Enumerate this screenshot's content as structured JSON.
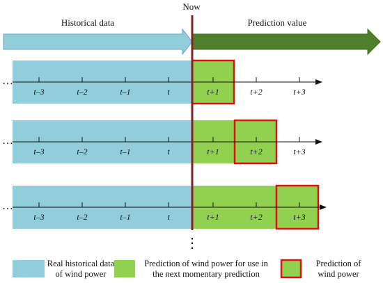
{
  "now_label": "Now",
  "historical_label": "Historical data",
  "prediction_label": "Prediction value",
  "ellipsis": "…",
  "vertical_ellipsis": "⋮",
  "tick_labels": {
    "t_minus_3": "t–3",
    "t_minus_2": "t–2",
    "t_minus_1": "t–1",
    "t": "t",
    "t_plus_1": "t+1",
    "t_plus_2": "t+2",
    "t_plus_3": "t+3"
  },
  "rows": [
    {
      "green_span": 1,
      "red_box": "t+1"
    },
    {
      "green_span": 2,
      "red_box": "t+2"
    },
    {
      "green_span": 3,
      "red_box": "t+3"
    }
  ],
  "legend": {
    "historical": {
      "line1": "Real historical data",
      "line2": "of wind power"
    },
    "prediction_use": {
      "line1": "Prediction of wind power for use in",
      "line2": "the next momentary prediction"
    },
    "prediction": {
      "line1": "Prediction of",
      "line2": "wind power"
    }
  },
  "colors": {
    "historical": "#92cddc",
    "prediction": "#92d050",
    "red_box": "#e01010",
    "now_line": "#8b1f1f",
    "dark_arrow": "#4f7f2a",
    "axis": "#111111"
  }
}
